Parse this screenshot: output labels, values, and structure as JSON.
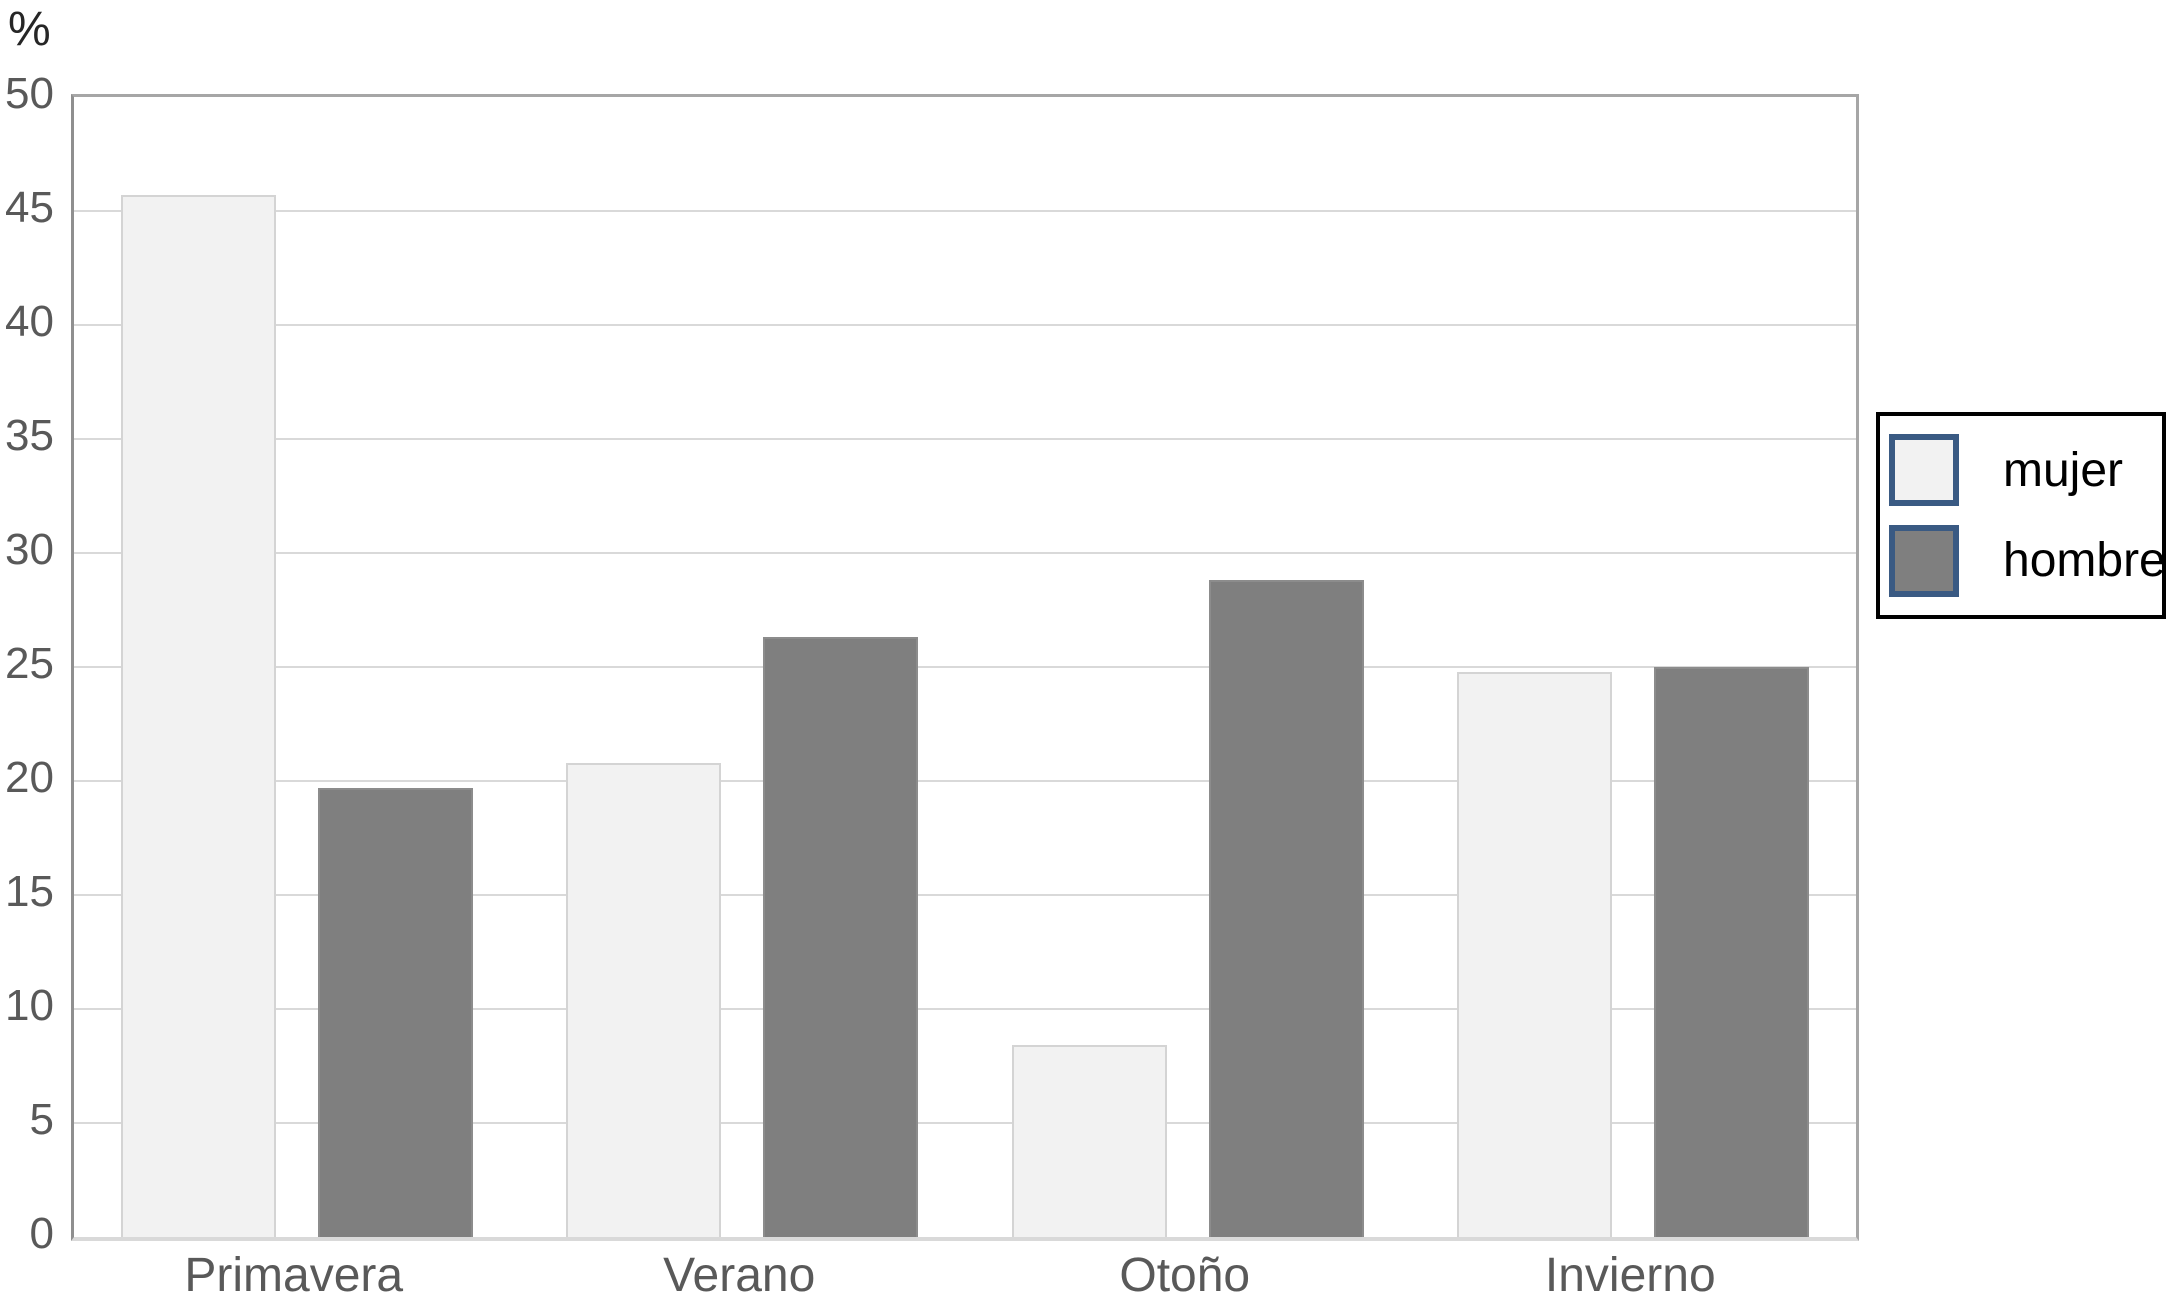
{
  "chart_data": {
    "type": "bar",
    "title": "",
    "ylabel": "%",
    "xlabel": "",
    "ylim": [
      0,
      50
    ],
    "ytick_step": 5,
    "yticks": [
      50,
      45,
      40,
      35,
      30,
      25,
      20,
      15,
      10,
      5,
      0
    ],
    "grid": true,
    "legend_position": "right",
    "categories": [
      "Primavera",
      "Verano",
      "Otoño",
      "Invierno"
    ],
    "series": [
      {
        "name": "mujer",
        "values": [
          45.7,
          20.8,
          8.4,
          24.8
        ],
        "fill_color": "#f2f2f2",
        "border_color": "#d4d4d4"
      },
      {
        "name": "hombre",
        "values": [
          19.7,
          26.3,
          28.8,
          25.0
        ],
        "fill_color": "#7f7f7f",
        "border_color": "#8c8c8c"
      }
    ],
    "colors": {
      "gridline": "#d9d9d9",
      "axis_border": "#a6a6a6",
      "tick_text": "#595959",
      "legend_text": "#000000",
      "legend_swatch_border": "#3a5a83"
    }
  }
}
